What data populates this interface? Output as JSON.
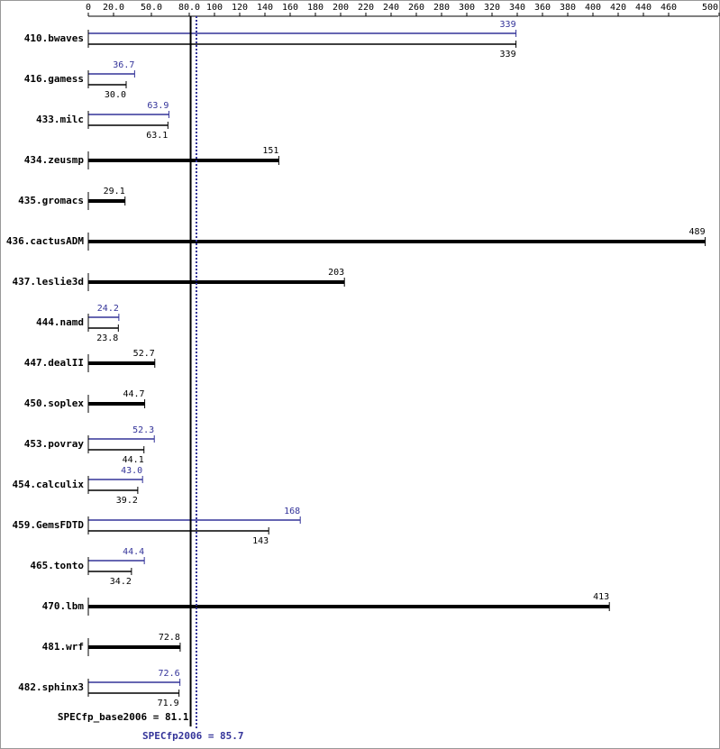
{
  "chart_data": {
    "type": "bar",
    "orientation": "horizontal",
    "categories": [
      "410.bwaves",
      "416.gamess",
      "433.milc",
      "434.zeusmp",
      "435.gromacs",
      "436.cactusADM",
      "437.leslie3d",
      "444.namd",
      "447.dealII",
      "450.soplex",
      "453.povray",
      "454.calculix",
      "459.GemsFDTD",
      "465.tonto",
      "470.lbm",
      "481.wrf",
      "482.sphinx3"
    ],
    "series": [
      {
        "color": "#333399",
        "values": [
          339,
          36.7,
          63.9,
          null,
          null,
          null,
          null,
          24.2,
          null,
          null,
          52.3,
          43.0,
          168,
          44.4,
          null,
          null,
          72.6
        ],
        "value_labels": [
          "339",
          "36.7",
          "63.9",
          null,
          null,
          null,
          null,
          "24.2",
          null,
          null,
          "52.3",
          "43.0",
          "168",
          "44.4",
          null,
          null,
          "72.6"
        ]
      },
      {
        "color": "#000000",
        "values": [
          339,
          30.0,
          63.1,
          151,
          29.1,
          489,
          203,
          23.8,
          52.7,
          44.7,
          44.1,
          39.2,
          143,
          34.2,
          413,
          72.8,
          71.9
        ],
        "value_labels": [
          "339",
          "30.0",
          "63.1",
          "151",
          "29.1",
          "489",
          "203",
          "23.8",
          "52.7",
          "44.7",
          "44.1",
          "39.2",
          "143",
          "34.2",
          "413",
          "72.8",
          "71.9"
        ]
      }
    ],
    "xlim": [
      0,
      500
    ],
    "xticks": [
      0,
      {
        "value": 20,
        "label": "20.0"
      },
      {
        "value": 50,
        "label": "50.0"
      },
      {
        "value": 80,
        "label": "80.0"
      },
      100,
      120,
      140,
      160,
      180,
      200,
      220,
      240,
      260,
      280,
      300,
      320,
      340,
      360,
      380,
      400,
      420,
      440,
      460,
      500
    ],
    "reference_lines": [
      {
        "label": "SPECfp_base2006 = 81.1",
        "value": 81.1,
        "color": "#000000"
      },
      {
        "label": "SPECfp2006 = 85.7",
        "value": 85.7,
        "color": "#333399"
      }
    ]
  }
}
